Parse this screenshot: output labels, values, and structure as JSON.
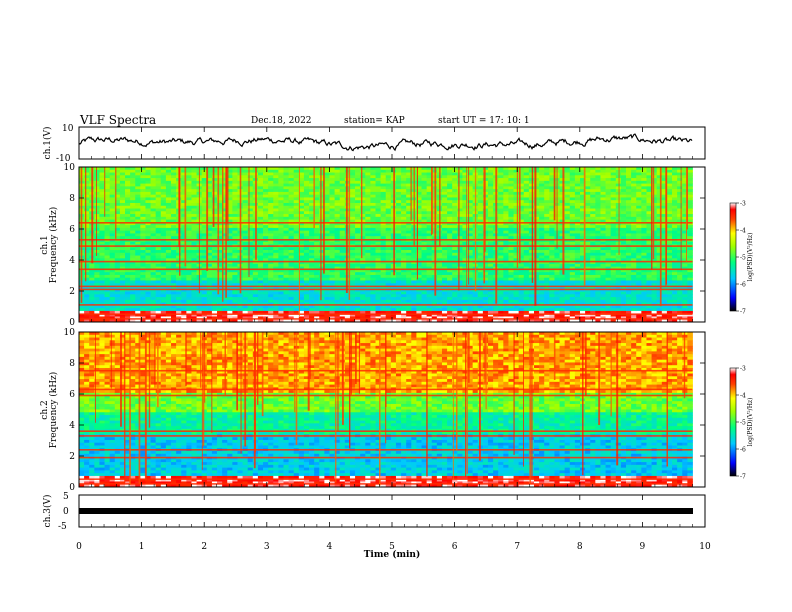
{
  "header": {
    "title": "VLF Spectra",
    "date": "Dec.18, 2022",
    "station": "station= KAP",
    "start": "start  UT  =   17: 10: 1"
  },
  "chart_data": [
    {
      "type": "line",
      "name": "ch1-waveform",
      "ylabel": "ch.1(V)",
      "ylim": [
        -10,
        10
      ],
      "yticks": [
        "10",
        "-10"
      ],
      "xlim": [
        0,
        10
      ]
    },
    {
      "type": "heatmap",
      "name": "ch1-spectrogram",
      "ylabel": "ch.1\nFrequency (kHz)",
      "ylim": [
        0,
        10
      ],
      "yticks": [
        "0",
        "2",
        "4",
        "6",
        "8",
        "10"
      ],
      "colorbar": {
        "label": "log(PSD)(V²/Hz)",
        "range": [
          -7,
          -3
        ],
        "ticks": [
          "-3",
          "-4",
          "-5",
          "-6",
          "-7"
        ]
      },
      "bands_khz": [
        0.2,
        0.5,
        1.1,
        2.1,
        2.3,
        3.4,
        3.9,
        4.9,
        5.3,
        6.4
      ]
    },
    {
      "type": "heatmap",
      "name": "ch2-spectrogram",
      "ylabel": "ch.2\nFrequency (kHz)",
      "ylim": [
        0,
        10
      ],
      "yticks": [
        "0",
        "2",
        "4",
        "6",
        "8",
        "10"
      ],
      "colorbar": {
        "label": "log(PSD)(V²/Hz)",
        "range": [
          -7,
          -3
        ],
        "ticks": [
          "-3",
          "-4",
          "-5",
          "-6",
          "-7"
        ]
      },
      "bands_khz": [
        0.2,
        0.5,
        1.9,
        2.4,
        3.3,
        3.6,
        5.9,
        6.3,
        7.5
      ]
    },
    {
      "type": "line",
      "name": "ch3-waveform",
      "ylabel": "ch.3(V)",
      "ylim": [
        -5,
        5
      ],
      "yticks": [
        "5",
        "0",
        "-5"
      ],
      "xlim": [
        0,
        10
      ]
    }
  ],
  "xaxis": {
    "label": "Time  (min)",
    "ticks": [
      "0",
      "1",
      "2",
      "3",
      "4",
      "5",
      "6",
      "7",
      "8",
      "9",
      "10"
    ],
    "range": [
      0,
      10
    ],
    "data_end_min": 9.8
  }
}
